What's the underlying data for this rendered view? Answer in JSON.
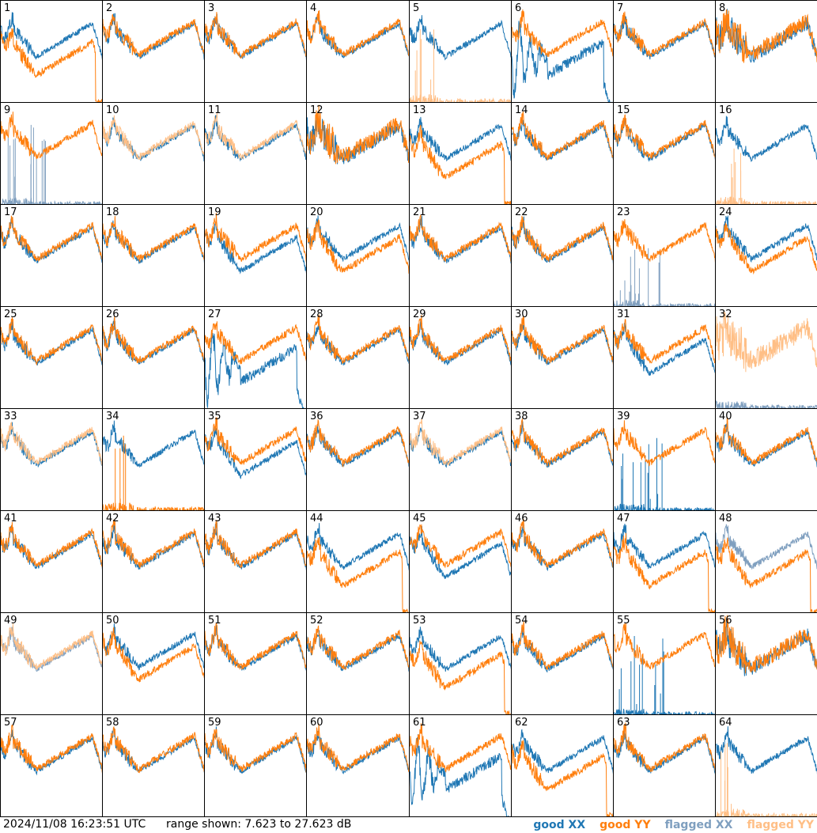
{
  "footer": {
    "timestamp": "2024/11/08 16:23:51 UTC",
    "range_text": "range shown: 7.623 to 27.623 dB"
  },
  "legend": [
    {
      "label": "good XX",
      "color": "#1f77b4"
    },
    {
      "label": "good YY",
      "color": "#ff7f0e"
    },
    {
      "label": "flagged XX",
      "color": "#7f9fbf"
    },
    {
      "label": "flagged YY",
      "color": "#ffbf86"
    }
  ],
  "chart_data": {
    "type": "line",
    "layout": "grid 8x8 small multiples",
    "ylim_db": [
      7.623,
      27.623
    ],
    "series_names": [
      "good XX",
      "good YY",
      "flagged XX",
      "flagged YY"
    ],
    "panels": [
      {
        "id": 1,
        "xx": "good",
        "yy": "good",
        "shape": "drop"
      },
      {
        "id": 2,
        "xx": "good",
        "yy": "good",
        "shape": "normal"
      },
      {
        "id": 3,
        "xx": "good",
        "yy": "good",
        "shape": "normal"
      },
      {
        "id": 4,
        "xx": "good",
        "yy": "good",
        "shape": "normal"
      },
      {
        "id": 5,
        "xx": "good",
        "yy": "flagged",
        "shape": "dead_yy"
      },
      {
        "id": 6,
        "xx": "good",
        "yy": "good",
        "shape": "wobble_xx"
      },
      {
        "id": 7,
        "xx": "good",
        "yy": "good",
        "shape": "normal"
      },
      {
        "id": 8,
        "xx": "good",
        "yy": "good",
        "shape": "noisy"
      },
      {
        "id": 9,
        "xx": "flagged",
        "yy": "good",
        "shape": "dead_xx"
      },
      {
        "id": 10,
        "xx": "good",
        "yy": "flagged",
        "shape": "normal"
      },
      {
        "id": 11,
        "xx": "good",
        "yy": "flagged",
        "shape": "normal"
      },
      {
        "id": 12,
        "xx": "good",
        "yy": "good",
        "shape": "noisy"
      },
      {
        "id": 13,
        "xx": "good",
        "yy": "good",
        "shape": "drop"
      },
      {
        "id": 14,
        "xx": "good",
        "yy": "good",
        "shape": "normal"
      },
      {
        "id": 15,
        "xx": "good",
        "yy": "good",
        "shape": "normal"
      },
      {
        "id": 16,
        "xx": "good",
        "yy": "flagged",
        "shape": "dead_yy"
      },
      {
        "id": 17,
        "xx": "good",
        "yy": "good",
        "shape": "normal"
      },
      {
        "id": 18,
        "xx": "good",
        "yy": "good",
        "shape": "normal"
      },
      {
        "id": 19,
        "xx": "good",
        "yy": "good",
        "shape": "split"
      },
      {
        "id": 20,
        "xx": "good",
        "yy": "good",
        "shape": "split"
      },
      {
        "id": 21,
        "xx": "good",
        "yy": "good",
        "shape": "normal"
      },
      {
        "id": 22,
        "xx": "good",
        "yy": "good",
        "shape": "normal"
      },
      {
        "id": 23,
        "xx": "flagged",
        "yy": "good",
        "shape": "dead_xx"
      },
      {
        "id": 24,
        "xx": "good",
        "yy": "good",
        "shape": "split"
      },
      {
        "id": 25,
        "xx": "good",
        "yy": "good",
        "shape": "normal"
      },
      {
        "id": 26,
        "xx": "good",
        "yy": "good",
        "shape": "normal"
      },
      {
        "id": 27,
        "xx": "good",
        "yy": "good",
        "shape": "wobble_xx"
      },
      {
        "id": 28,
        "xx": "good",
        "yy": "good",
        "shape": "normal"
      },
      {
        "id": 29,
        "xx": "good",
        "yy": "good",
        "shape": "normal"
      },
      {
        "id": 30,
        "xx": "good",
        "yy": "good",
        "shape": "normal"
      },
      {
        "id": 31,
        "xx": "good",
        "yy": "good",
        "shape": "split"
      },
      {
        "id": 32,
        "xx": "flagged",
        "yy": "flagged",
        "shape": "noisy_yy"
      },
      {
        "id": 33,
        "xx": "good",
        "yy": "flagged",
        "shape": "normal"
      },
      {
        "id": 34,
        "xx": "good",
        "yy": "good",
        "shape": "dead_yy"
      },
      {
        "id": 35,
        "xx": "good",
        "yy": "good",
        "shape": "split"
      },
      {
        "id": 36,
        "xx": "good",
        "yy": "good",
        "shape": "normal"
      },
      {
        "id": 37,
        "xx": "good",
        "yy": "flagged",
        "shape": "normal"
      },
      {
        "id": 38,
        "xx": "good",
        "yy": "good",
        "shape": "normal"
      },
      {
        "id": 39,
        "xx": "good",
        "yy": "good",
        "shape": "dead_xx"
      },
      {
        "id": 40,
        "xx": "good",
        "yy": "good",
        "shape": "normal"
      },
      {
        "id": 41,
        "xx": "good",
        "yy": "good",
        "shape": "normal"
      },
      {
        "id": 42,
        "xx": "good",
        "yy": "good",
        "shape": "normal"
      },
      {
        "id": 43,
        "xx": "good",
        "yy": "good",
        "shape": "normal"
      },
      {
        "id": 44,
        "xx": "good",
        "yy": "good",
        "shape": "drop"
      },
      {
        "id": 45,
        "xx": "good",
        "yy": "good",
        "shape": "split"
      },
      {
        "id": 46,
        "xx": "good",
        "yy": "good",
        "shape": "normal"
      },
      {
        "id": 47,
        "xx": "good",
        "yy": "good",
        "shape": "drop"
      },
      {
        "id": 48,
        "xx": "flagged",
        "yy": "good",
        "shape": "drop"
      },
      {
        "id": 49,
        "xx": "flagged",
        "yy": "flagged",
        "shape": "normal"
      },
      {
        "id": 50,
        "xx": "good",
        "yy": "good",
        "shape": "split"
      },
      {
        "id": 51,
        "xx": "good",
        "yy": "good",
        "shape": "normal"
      },
      {
        "id": 52,
        "xx": "good",
        "yy": "good",
        "shape": "normal"
      },
      {
        "id": 53,
        "xx": "good",
        "yy": "good",
        "shape": "drop"
      },
      {
        "id": 54,
        "xx": "good",
        "yy": "good",
        "shape": "normal"
      },
      {
        "id": 55,
        "xx": "good",
        "yy": "good",
        "shape": "dead_xx"
      },
      {
        "id": 56,
        "xx": "good",
        "yy": "good",
        "shape": "noisy"
      },
      {
        "id": 57,
        "xx": "good",
        "yy": "good",
        "shape": "normal"
      },
      {
        "id": 58,
        "xx": "good",
        "yy": "good",
        "shape": "normal"
      },
      {
        "id": 59,
        "xx": "good",
        "yy": "good",
        "shape": "normal"
      },
      {
        "id": 60,
        "xx": "good",
        "yy": "good",
        "shape": "normal"
      },
      {
        "id": 61,
        "xx": "good",
        "yy": "good",
        "shape": "wobble_xx"
      },
      {
        "id": 62,
        "xx": "good",
        "yy": "good",
        "shape": "drop"
      },
      {
        "id": 63,
        "xx": "good",
        "yy": "good",
        "shape": "normal"
      },
      {
        "id": 64,
        "xx": "good",
        "yy": "flagged",
        "shape": "dead_yy"
      }
    ]
  }
}
